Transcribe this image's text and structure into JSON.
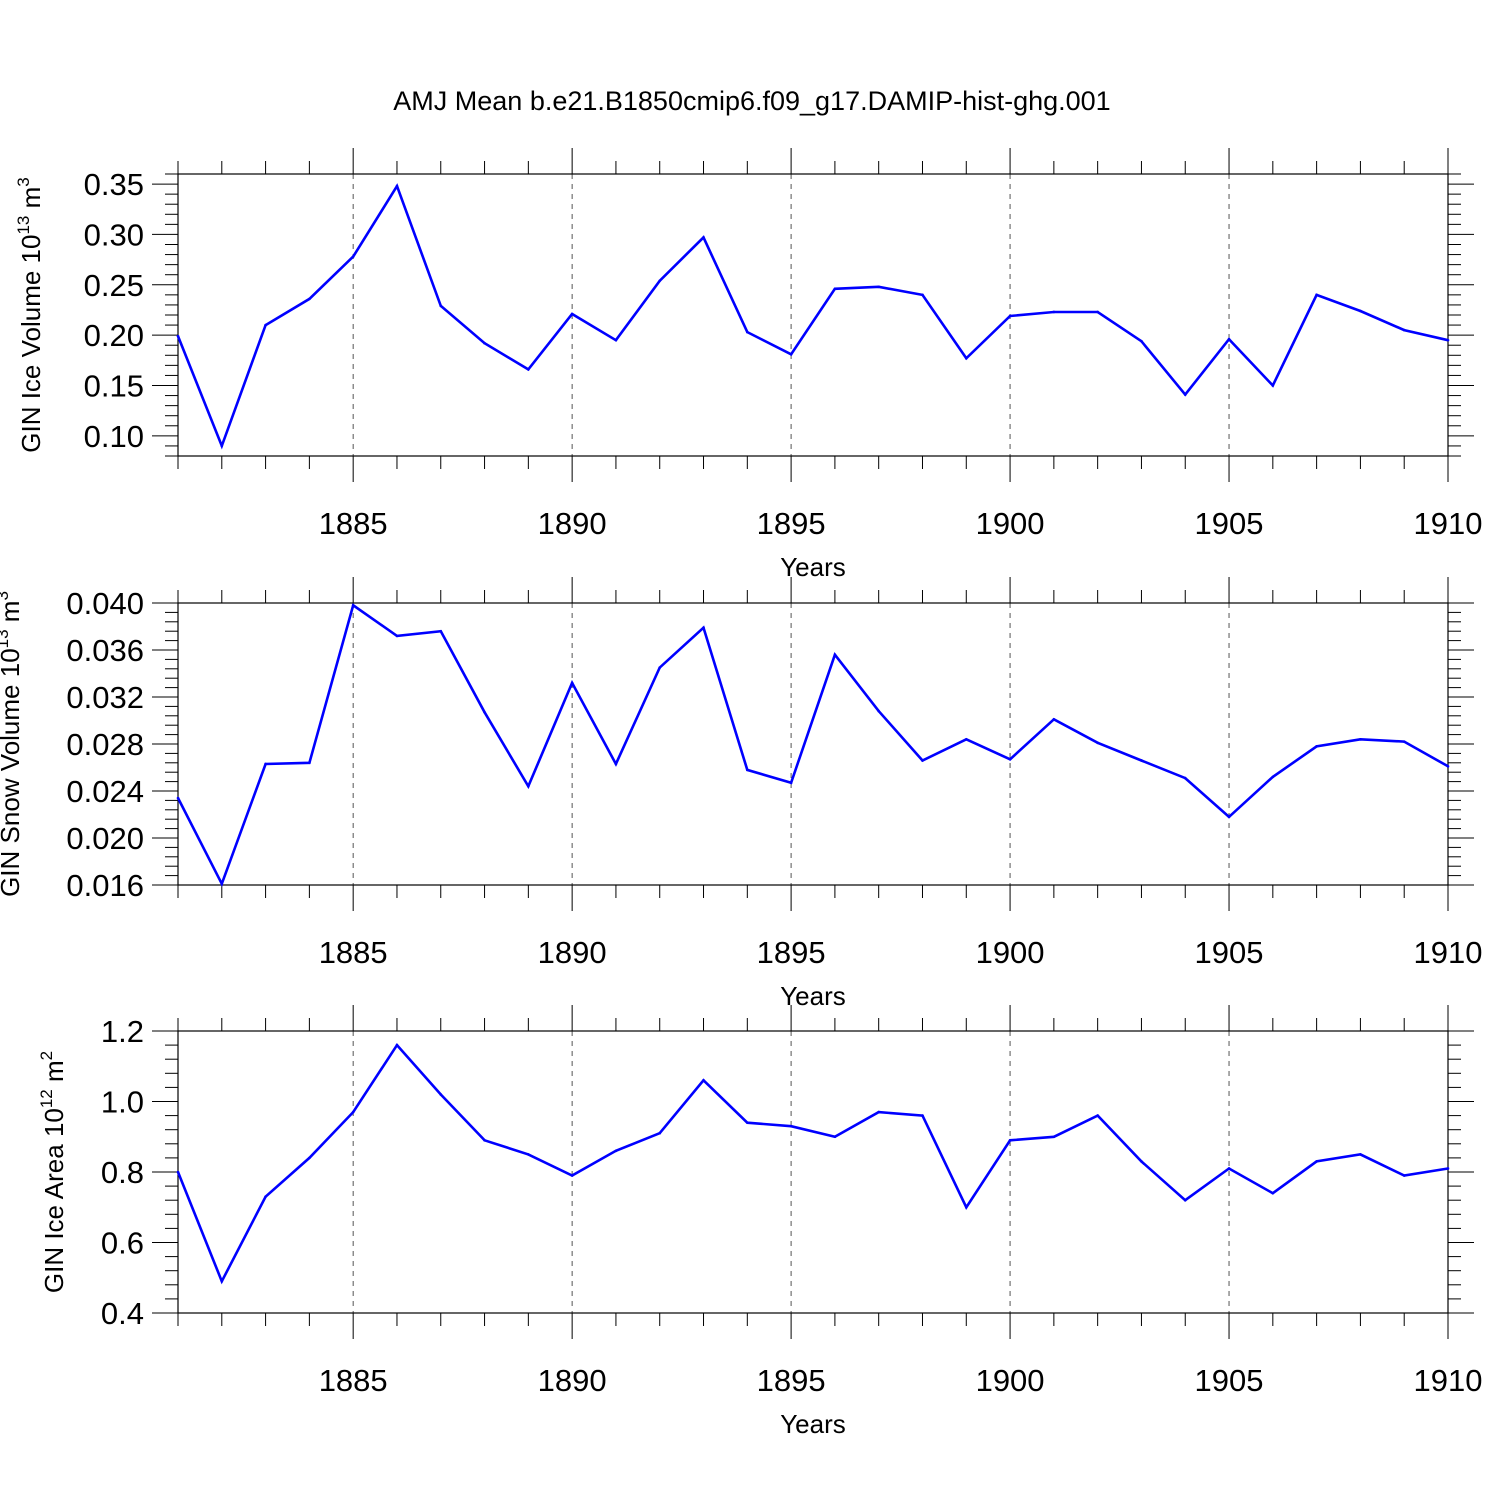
{
  "title": "AMJ Mean b.e21.B1850cmip6.f09_g17.DAMIP-hist-ghg.001",
  "colors": {
    "line": "#0000ff",
    "axis": "#000000",
    "grid": "#555555"
  },
  "chart_data": [
    {
      "type": "line",
      "xlabel": "Years",
      "ylabel": {
        "text": "GIN Ice Volume 10",
        "sup": "13",
        "unit": " m",
        "unit_sup": "3"
      },
      "xlim": [
        1881,
        1910
      ],
      "ylim": [
        0.08,
        0.36
      ],
      "xticks": [
        1885,
        1890,
        1895,
        1900,
        1905,
        1910
      ],
      "xtick_labels": [
        "1885",
        "1890",
        "1895",
        "1900",
        "1905",
        "1910"
      ],
      "yticks": [
        0.1,
        0.15,
        0.2,
        0.25,
        0.3,
        0.35
      ],
      "ytick_labels": [
        "0.10",
        "0.15",
        "0.20",
        "0.25",
        "0.30",
        "0.35"
      ],
      "grid": "vertical dashed at major x ticks",
      "x": [
        1881,
        1882,
        1883,
        1884,
        1885,
        1886,
        1887,
        1888,
        1889,
        1890,
        1891,
        1892,
        1893,
        1894,
        1895,
        1896,
        1897,
        1898,
        1899,
        1900,
        1901,
        1902,
        1903,
        1904,
        1905,
        1906,
        1907,
        1908,
        1909,
        1910
      ],
      "values": [
        0.199,
        0.09,
        0.21,
        0.236,
        0.278,
        0.348,
        0.229,
        0.192,
        0.166,
        0.221,
        0.195,
        0.254,
        0.297,
        0.203,
        0.181,
        0.246,
        0.248,
        0.24,
        0.177,
        0.219,
        0.223,
        0.223,
        0.194,
        0.141,
        0.196,
        0.15,
        0.24,
        0.224,
        0.205,
        0.195
      ]
    },
    {
      "type": "line",
      "xlabel": "Years",
      "ylabel": {
        "text": "GIN Snow Volume 10",
        "sup": "13",
        "unit": " m",
        "unit_sup": "3"
      },
      "xlim": [
        1881,
        1910
      ],
      "ylim": [
        0.016,
        0.04
      ],
      "xticks": [
        1885,
        1890,
        1895,
        1900,
        1905,
        1910
      ],
      "xtick_labels": [
        "1885",
        "1890",
        "1895",
        "1900",
        "1905",
        "1910"
      ],
      "yticks": [
        0.016,
        0.02,
        0.024,
        0.028,
        0.032,
        0.036,
        0.04
      ],
      "ytick_labels": [
        "0.016",
        "0.020",
        "0.024",
        "0.028",
        "0.032",
        "0.036",
        "0.040"
      ],
      "grid": "vertical dashed at major x ticks",
      "x": [
        1881,
        1882,
        1883,
        1884,
        1885,
        1886,
        1887,
        1888,
        1889,
        1890,
        1891,
        1892,
        1893,
        1894,
        1895,
        1896,
        1897,
        1898,
        1899,
        1900,
        1901,
        1902,
        1903,
        1904,
        1905,
        1906,
        1907,
        1908,
        1909,
        1910
      ],
      "values": [
        0.0234,
        0.0161,
        0.0263,
        0.0264,
        0.0398,
        0.0372,
        0.0376,
        0.0307,
        0.0244,
        0.0332,
        0.0263,
        0.0345,
        0.0379,
        0.0258,
        0.0247,
        0.0356,
        0.0308,
        0.0266,
        0.0284,
        0.0267,
        0.0301,
        0.0281,
        0.0266,
        0.0251,
        0.0218,
        0.0252,
        0.0278,
        0.0284,
        0.0282,
        0.0261
      ]
    },
    {
      "type": "line",
      "xlabel": "Years",
      "ylabel": {
        "text": "GIN Ice Area 10",
        "sup": "12",
        "unit": " m",
        "unit_sup": "2"
      },
      "xlim": [
        1881,
        1910
      ],
      "ylim": [
        0.4,
        1.2
      ],
      "xticks": [
        1885,
        1890,
        1895,
        1900,
        1905,
        1910
      ],
      "xtick_labels": [
        "1885",
        "1890",
        "1895",
        "1900",
        "1905",
        "1910"
      ],
      "yticks": [
        0.4,
        0.6,
        0.8,
        1.0,
        1.2
      ],
      "ytick_labels": [
        "0.4",
        "0.6",
        "0.8",
        "1.0",
        "1.2"
      ],
      "grid": "vertical dashed at major x ticks",
      "x": [
        1881,
        1882,
        1883,
        1884,
        1885,
        1886,
        1887,
        1888,
        1889,
        1890,
        1891,
        1892,
        1893,
        1894,
        1895,
        1896,
        1897,
        1898,
        1899,
        1900,
        1901,
        1902,
        1903,
        1904,
        1905,
        1906,
        1907,
        1908,
        1909,
        1910
      ],
      "values": [
        0.8,
        0.49,
        0.73,
        0.84,
        0.97,
        1.16,
        1.02,
        0.89,
        0.85,
        0.79,
        0.86,
        0.91,
        1.06,
        0.94,
        0.93,
        0.9,
        0.97,
        0.96,
        0.7,
        0.89,
        0.9,
        0.96,
        0.83,
        0.72,
        0.81,
        0.74,
        0.83,
        0.85,
        0.79,
        0.81
      ]
    }
  ]
}
